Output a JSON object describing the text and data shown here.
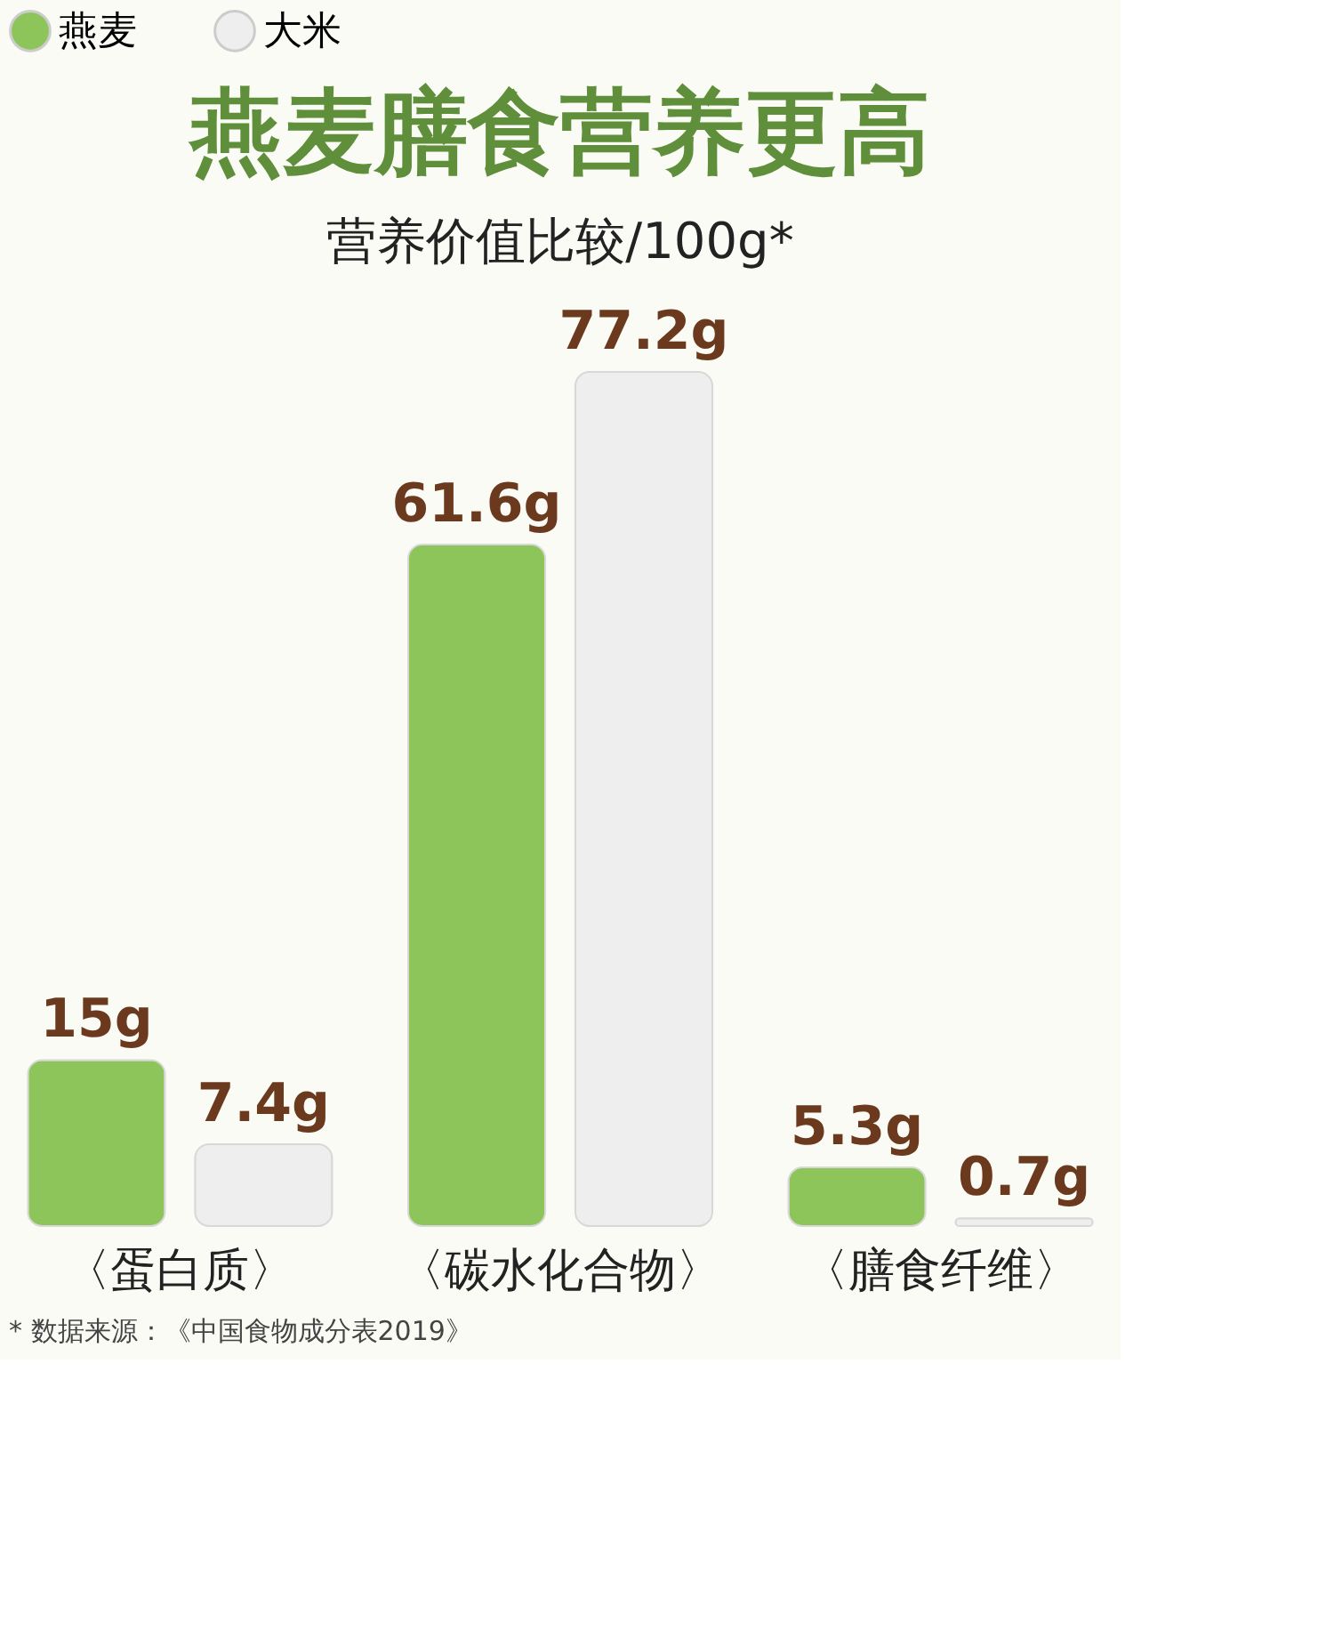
{
  "chart_data": {
    "type": "bar",
    "title": "燕麦膳食营养更高",
    "subtitle": "营养价值比较/100g*",
    "categories": [
      "〈蛋白质〉",
      "〈碳水化合物〉",
      "〈膳食纤维〉"
    ],
    "series": [
      {
        "name": "燕麦",
        "color": "#8dc55b",
        "values": [
          15,
          61.6,
          5.3
        ],
        "value_labels": [
          "15g",
          "61.6g",
          "5.3g"
        ]
      },
      {
        "name": "大米",
        "color": "#eeeeee",
        "values": [
          7.4,
          77.2,
          0.7
        ],
        "value_labels": [
          "7.4g",
          "77.2g",
          "0.7g"
        ]
      }
    ],
    "legend": "top",
    "tick_labels": "x",
    "grid": false,
    "annotations": [
      "* 数据来源：《中国食物成分表2019》"
    ]
  }
}
